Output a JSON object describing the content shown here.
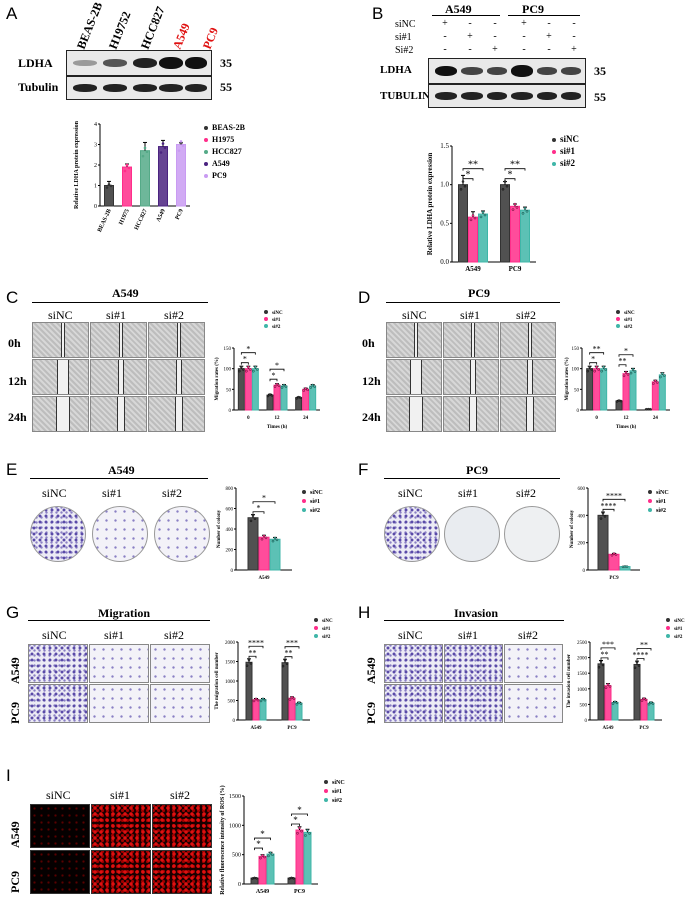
{
  "panel_letters": [
    "A",
    "B",
    "C",
    "D",
    "E",
    "F",
    "G",
    "H",
    "I"
  ],
  "panelA": {
    "lanes": [
      {
        "label": "BEAS-2B",
        "color": "#000000"
      },
      {
        "label": "H19752",
        "color": "#000000"
      },
      {
        "label": "HCC827",
        "color": "#000000"
      },
      {
        "label": "A549",
        "color": "#e01010"
      },
      {
        "label": "PC9",
        "color": "#e01010"
      }
    ],
    "rows": [
      {
        "name": "LDHA",
        "kda": "35"
      },
      {
        "name": "Tubulin",
        "kda": "55"
      }
    ]
  },
  "panelB": {
    "groups": [
      "A549",
      "PC9"
    ],
    "row_labels": [
      "siNC",
      "si#1",
      "Si#2"
    ],
    "signs": [
      [
        "+",
        "-",
        "-",
        "+",
        "-",
        "-"
      ],
      [
        "-",
        "+",
        "-",
        "-",
        "+",
        "-"
      ],
      [
        "-",
        "-",
        "+",
        "-",
        "-",
        "+"
      ]
    ],
    "rows": [
      {
        "name": "LDHA",
        "kda": "35"
      },
      {
        "name": "TUBULIN",
        "kda": "55"
      }
    ]
  },
  "panelC": {
    "title": "A549",
    "cols": [
      "siNC",
      "si#1",
      "si#2"
    ],
    "rows": [
      "0h",
      "12h",
      "24h"
    ]
  },
  "panelD": {
    "title": "PC9",
    "cols": [
      "siNC",
      "si#1",
      "si#2"
    ],
    "rows": [
      "0h",
      "12h",
      "24h"
    ]
  },
  "panelE": {
    "title": "A549",
    "cols": [
      "siNC",
      "si#1",
      "si#2"
    ]
  },
  "panelF": {
    "title": "PC9",
    "cols": [
      "siNC",
      "si#1",
      "si#2"
    ]
  },
  "panelG": {
    "title": "Migration",
    "cols": [
      "siNC",
      "si#1",
      "si#2"
    ],
    "rows": [
      "A549",
      "PC9"
    ]
  },
  "panelH": {
    "title": "Invasion",
    "cols": [
      "siNC",
      "si#1",
      "si#2"
    ],
    "rows": [
      "A549",
      "PC9"
    ]
  },
  "panelI": {
    "cols": [
      "siNC",
      "si#1",
      "si#2"
    ],
    "rows": [
      "A549",
      "PC9"
    ]
  },
  "colors": {
    "black": "#333333",
    "pink": "#ff2d8a",
    "teal": "#3fb6a8",
    "green": "#55aa88",
    "purple": "#4b2380",
    "lavender": "#c99bf2"
  },
  "chart_data": [
    {
      "id": "A",
      "type": "bar",
      "categories": [
        "BEAS-2B",
        "H1975",
        "HCC827",
        "A549",
        "PC9"
      ],
      "values": [
        1.0,
        1.9,
        2.7,
        2.9,
        3.0
      ],
      "errors": [
        0.2,
        0.15,
        0.4,
        0.3,
        0.08
      ],
      "ylabel": "Relative LDHA protein expression",
      "ylim": [
        0,
        4
      ],
      "yticks": [
        "0",
        "1",
        "2",
        "3",
        "4"
      ],
      "colors": [
        "#333333",
        "#ff2d8a",
        "#55aa88",
        "#4b2380",
        "#c99bf2"
      ],
      "legend": [
        "BEAS-2B",
        "H1975",
        "HCC827",
        "A549",
        "PC9"
      ]
    },
    {
      "id": "B",
      "type": "bar",
      "categories": [
        "A549",
        "PC9"
      ],
      "series": [
        {
          "name": "siNC",
          "values": [
            1.0,
            1.0
          ]
        },
        {
          "name": "si#1",
          "values": [
            0.58,
            0.72
          ]
        },
        {
          "name": "si#2",
          "values": [
            0.62,
            0.67
          ]
        }
      ],
      "errors": [
        [
          0.12,
          0.04
        ],
        [
          0.07,
          0.03
        ],
        [
          0.04,
          0.04
        ]
      ],
      "ylabel": "Relative LDHA protein expression",
      "ylim": [
        0,
        1.5
      ],
      "yticks": [
        "0.0",
        "0.5",
        "1.0",
        "1.5"
      ],
      "sig": [
        [
          "*",
          "*"
        ],
        [
          "**",
          "**"
        ]
      ]
    },
    {
      "id": "C",
      "type": "bar",
      "categories": [
        "0",
        "12",
        "24"
      ],
      "series": [
        {
          "name": "siNC",
          "values": [
            100,
            36,
            30
          ]
        },
        {
          "name": "si#1",
          "values": [
            100,
            60,
            50
          ]
        },
        {
          "name": "si#2",
          "values": [
            100,
            58,
            58
          ]
        }
      ],
      "ylabel": "Migration rates (%)",
      "xlabel": "Times (h)",
      "ylim": [
        0,
        150
      ],
      "yticks": [
        "0",
        "50",
        "100",
        "150"
      ],
      "sig": [
        "*",
        "*",
        "*",
        "*"
      ]
    },
    {
      "id": "D",
      "type": "bar",
      "categories": [
        "0",
        "12",
        "24"
      ],
      "series": [
        {
          "name": "siNC",
          "values": [
            100,
            22,
            2
          ]
        },
        {
          "name": "si#1",
          "values": [
            100,
            88,
            68
          ]
        },
        {
          "name": "si#2",
          "values": [
            100,
            95,
            85
          ]
        }
      ],
      "ylabel": "Migration rates (%)",
      "xlabel": "Times (h)",
      "ylim": [
        0,
        150
      ],
      "yticks": [
        "0",
        "50",
        "100",
        "150"
      ],
      "sig": [
        "*",
        "**",
        "**",
        "*"
      ]
    },
    {
      "id": "E",
      "type": "bar",
      "categories": [
        "A549"
      ],
      "series": [
        {
          "name": "siNC",
          "values": [
            510
          ]
        },
        {
          "name": "si#1",
          "values": [
            320
          ]
        },
        {
          "name": "si#2",
          "values": [
            300
          ]
        }
      ],
      "ylabel": "Number of colony",
      "ylim": [
        0,
        800
      ],
      "yticks": [
        "0",
        "200",
        "400",
        "600",
        "800"
      ],
      "sig": [
        "*",
        "*"
      ]
    },
    {
      "id": "F",
      "type": "bar",
      "categories": [
        "PC9"
      ],
      "series": [
        {
          "name": "siNC",
          "values": [
            400
          ]
        },
        {
          "name": "si#1",
          "values": [
            115
          ]
        },
        {
          "name": "si#2",
          "values": [
            25
          ]
        }
      ],
      "ylabel": "Number of colony",
      "ylim": [
        0,
        600
      ],
      "yticks": [
        "0",
        "200",
        "400",
        "600"
      ],
      "sig": [
        "****",
        "****"
      ]
    },
    {
      "id": "G",
      "type": "bar",
      "categories": [
        "A549",
        "PC9"
      ],
      "series": [
        {
          "name": "siNC",
          "values": [
            1480,
            1470
          ]
        },
        {
          "name": "si#1",
          "values": [
            520,
            560
          ]
        },
        {
          "name": "si#2",
          "values": [
            520,
            430
          ]
        }
      ],
      "ylabel": "The migration cell number",
      "ylim": [
        0,
        2000
      ],
      "yticks": [
        "0",
        "500",
        "1000",
        "1500",
        "2000"
      ],
      "sig": [
        "**",
        "****",
        "**",
        "***"
      ]
    },
    {
      "id": "H",
      "type": "bar",
      "categories": [
        "A549",
        "PC9"
      ],
      "series": [
        {
          "name": "siNC",
          "values": [
            1800,
            1780
          ]
        },
        {
          "name": "si#1",
          "values": [
            1100,
            660
          ]
        },
        {
          "name": "si#2",
          "values": [
            560,
            540
          ]
        }
      ],
      "ylabel": "The invasion cell number",
      "ylim": [
        0,
        2500
      ],
      "yticks": [
        "0",
        "500",
        "1000",
        "1500",
        "2000",
        "2500"
      ],
      "sig": [
        "**",
        "***",
        "****",
        "**"
      ]
    },
    {
      "id": "I",
      "type": "bar",
      "categories": [
        "A549",
        "PC9"
      ],
      "series": [
        {
          "name": "siNC",
          "values": [
            100,
            100
          ]
        },
        {
          "name": "si#1",
          "values": [
            470,
            920
          ]
        },
        {
          "name": "si#2",
          "values": [
            510,
            880
          ]
        }
      ],
      "ylabel": "Relative fluorescence intensity of ROS (%)",
      "ylim": [
        0,
        1500
      ],
      "yticks": [
        "0",
        "500",
        "1000",
        "1500"
      ],
      "sig": [
        "*",
        "*",
        "*",
        "*"
      ]
    }
  ]
}
